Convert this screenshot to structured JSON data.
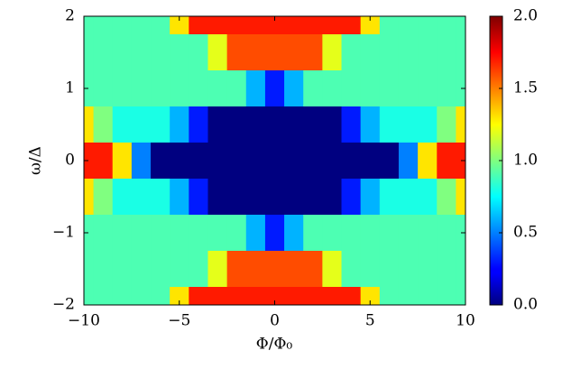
{
  "chart_data": {
    "type": "heatmap",
    "xlabel": "Φ/Φ₀",
    "ylabel": "ω/Δ",
    "x": [
      -10,
      -9,
      -8,
      -7,
      -6,
      -5,
      -4,
      -3,
      -2,
      -1,
      0,
      1,
      2,
      3,
      4,
      5,
      6,
      7,
      8,
      9,
      10
    ],
    "y": [
      2,
      1.5,
      1,
      0.5,
      0,
      -0.5,
      -1,
      -1.5,
      -2
    ],
    "z": [
      [
        0.9,
        0.9,
        0.9,
        0.9,
        0.9,
        1.3,
        1.7,
        1.7,
        1.7,
        1.7,
        1.7,
        1.7,
        1.7,
        1.7,
        1.7,
        1.3,
        0.9,
        0.9,
        0.9,
        0.9,
        0.9
      ],
      [
        0.9,
        0.9,
        0.9,
        0.9,
        0.9,
        0.9,
        0.9,
        1.2,
        1.6,
        1.6,
        1.6,
        1.6,
        1.6,
        1.2,
        0.9,
        0.9,
        0.9,
        0.9,
        0.9,
        0.9,
        0.9
      ],
      [
        0.9,
        0.9,
        0.9,
        0.9,
        0.9,
        0.9,
        0.9,
        0.9,
        0.9,
        0.6,
        0.3,
        0.6,
        0.9,
        0.9,
        0.9,
        0.9,
        0.9,
        0.9,
        0.9,
        0.9,
        0.9
      ],
      [
        1.3,
        1.0,
        0.8,
        0.8,
        0.8,
        0.6,
        0.3,
        0,
        0,
        0,
        0,
        0,
        0,
        0,
        0.3,
        0.6,
        0.8,
        0.8,
        0.8,
        1.0,
        1.3
      ],
      [
        1.7,
        1.7,
        1.3,
        0.5,
        0,
        0,
        0,
        0,
        0,
        0,
        0,
        0,
        0,
        0,
        0,
        0,
        0,
        0.5,
        1.3,
        1.7,
        1.7
      ],
      [
        1.3,
        1.0,
        0.8,
        0.8,
        0.8,
        0.6,
        0.3,
        0,
        0,
        0,
        0,
        0,
        0,
        0,
        0.3,
        0.6,
        0.8,
        0.8,
        0.8,
        1.0,
        1.3
      ],
      [
        0.9,
        0.9,
        0.9,
        0.9,
        0.9,
        0.9,
        0.9,
        0.9,
        0.9,
        0.6,
        0.3,
        0.6,
        0.9,
        0.9,
        0.9,
        0.9,
        0.9,
        0.9,
        0.9,
        0.9,
        0.9
      ],
      [
        0.9,
        0.9,
        0.9,
        0.9,
        0.9,
        0.9,
        0.9,
        1.2,
        1.6,
        1.6,
        1.6,
        1.6,
        1.6,
        1.2,
        0.9,
        0.9,
        0.9,
        0.9,
        0.9,
        0.9,
        0.9
      ],
      [
        0.9,
        0.9,
        0.9,
        0.9,
        0.9,
        1.3,
        1.7,
        1.7,
        1.7,
        1.7,
        1.7,
        1.7,
        1.7,
        1.7,
        1.7,
        1.3,
        0.9,
        0.9,
        0.9,
        0.9,
        0.9
      ]
    ],
    "xlim": [
      -10,
      10
    ],
    "xticks": [
      {
        "value": -10,
        "label": "−10"
      },
      {
        "value": -5,
        "label": "−5"
      },
      0,
      5,
      10
    ],
    "ylim": [
      -2,
      2
    ],
    "yticks": [
      {
        "value": -2,
        "label": "−2"
      },
      {
        "value": -1,
        "label": "−1"
      },
      0,
      1,
      2
    ],
    "clim": [
      0,
      2
    ],
    "cticks": [
      {
        "value": 0,
        "label": "0.0"
      },
      {
        "value": 0.5,
        "label": "0.5"
      },
      {
        "value": 1,
        "label": "1.0"
      },
      {
        "value": 1.5,
        "label": "1.5"
      },
      {
        "value": 2,
        "label": "2.0"
      }
    ],
    "colormap": "jet"
  }
}
